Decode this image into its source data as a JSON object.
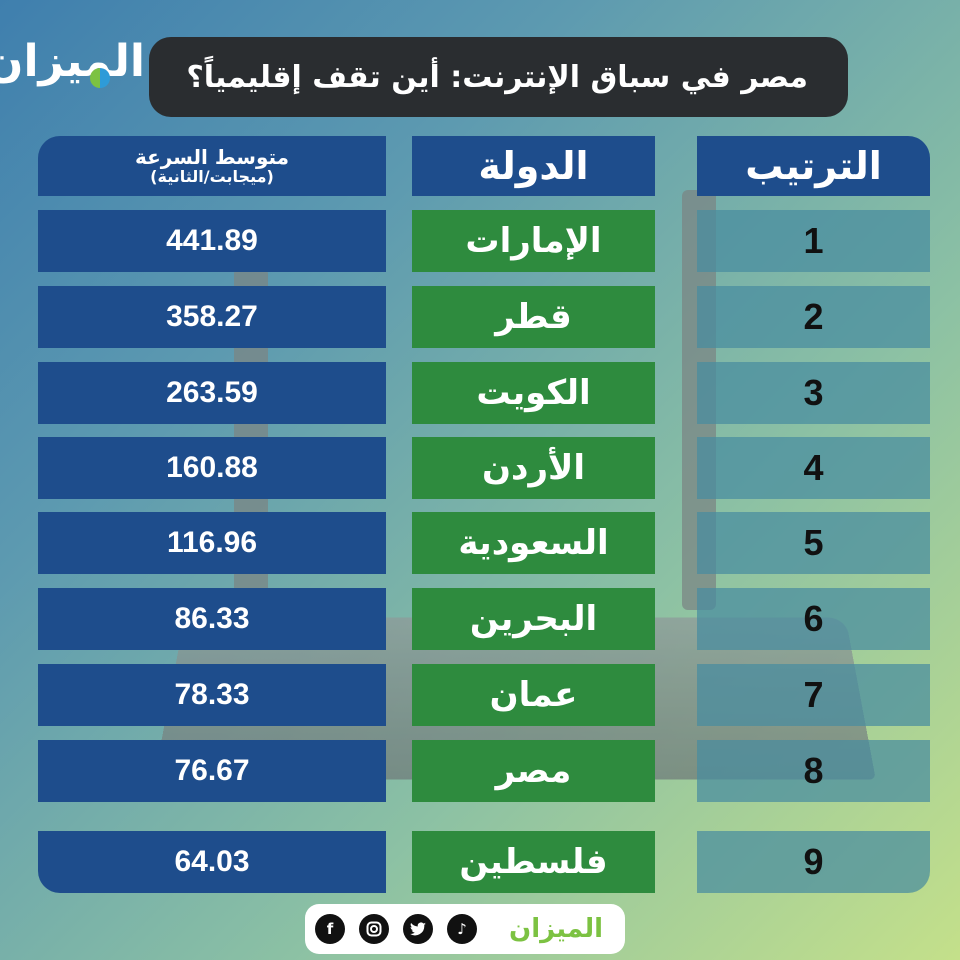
{
  "brand": {
    "logo_text": "الميزان"
  },
  "title": "مصر في سباق الإنترنت: أين تقف إقليمياً؟",
  "table": {
    "headers": {
      "speed_line1": "متوسط السرعة",
      "speed_line2": "(ميجابت/الثانية)",
      "country": "الدولة",
      "rank": "الترتيب"
    },
    "rows": [
      {
        "rank": "1",
        "country": "الإمارات",
        "speed": "441.89"
      },
      {
        "rank": "2",
        "country": "قطر",
        "speed": "358.27"
      },
      {
        "rank": "3",
        "country": "الكويت",
        "speed": "263.59"
      },
      {
        "rank": "4",
        "country": "الأردن",
        "speed": "160.88"
      },
      {
        "rank": "5",
        "country": "السعودية",
        "speed": "116.96"
      },
      {
        "rank": "6",
        "country": "البحرين",
        "speed": "86.33"
      },
      {
        "rank": "7",
        "country": "عمان",
        "speed": "78.33"
      },
      {
        "rank": "8",
        "country": "مصر",
        "speed": "76.67"
      },
      {
        "rank": "9",
        "country": "فلسطين",
        "speed": "64.03"
      }
    ]
  },
  "footer": {
    "icons": [
      "facebook-icon",
      "instagram-icon",
      "twitter-icon",
      "tiktok-icon"
    ],
    "logo_text": "الميزان"
  },
  "colors": {
    "header_blue": "#1e4d8c",
    "country_green": "#2e8b3e",
    "title_bar": "#2a2d30"
  }
}
